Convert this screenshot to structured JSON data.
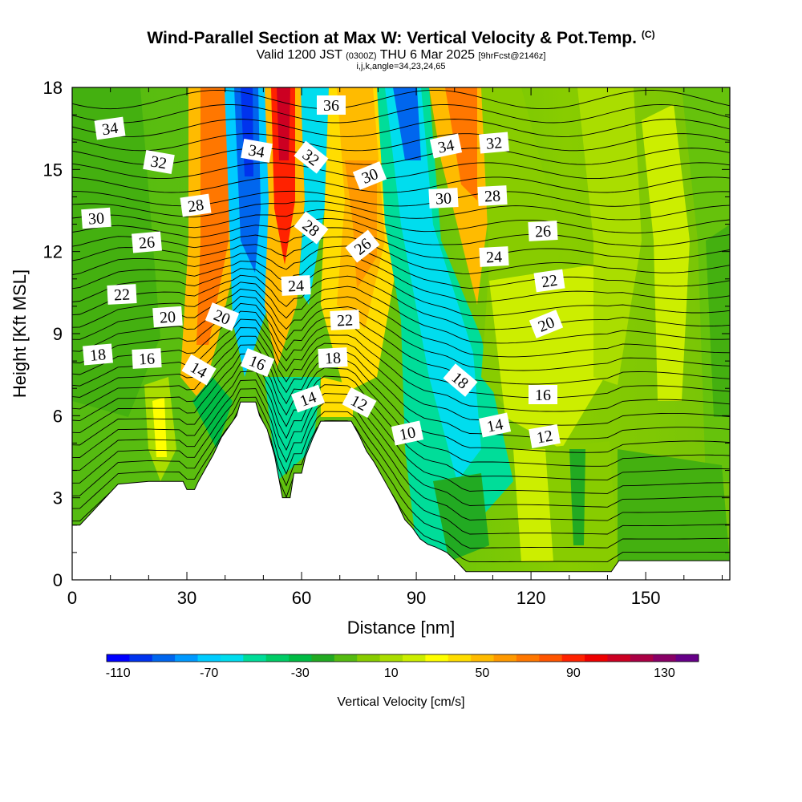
{
  "title": {
    "main": "Wind-Parallel Section at Max W: Vertical Velocity & Pot.Temp.",
    "copyright": "(C)",
    "valid_prefix": "Valid 1200 JST",
    "utc": "(0300Z)",
    "date": "THU 6 Mar 2025",
    "fcst": "[9hrFcst@2146z]",
    "params": "i,j,k,angle=34,23,24,65"
  },
  "chart_data": {
    "type": "heatmap",
    "xlabel": "Distance [nm]",
    "ylabel": "Height [Kft MSL]",
    "xlim": [
      0,
      172
    ],
    "ylim": [
      0,
      18
    ],
    "xticks": [
      "0",
      "30",
      "60",
      "90",
      "120",
      "150"
    ],
    "yticks": [
      "0",
      "3",
      "6",
      "9",
      "12",
      "15",
      "18"
    ],
    "colorbar": {
      "label": "Vertical Velocity [cm/s]",
      "tick_labels": [
        "-110",
        "-70",
        "-30",
        "10",
        "50",
        "90",
        "130"
      ],
      "colors": [
        "#0000ff",
        "#0033ee",
        "#0066ee",
        "#0099ff",
        "#00ccff",
        "#00ddee",
        "#00dd99",
        "#00cc66",
        "#00bb44",
        "#22aa22",
        "#55bb11",
        "#88cc00",
        "#aadd00",
        "#ccee00",
        "#ffff00",
        "#ffdd00",
        "#ffbb00",
        "#ff9900",
        "#ff7700",
        "#ff5500",
        "#ff2200",
        "#ee0000",
        "#cc0022",
        "#aa0044",
        "#880066",
        "#660088"
      ]
    },
    "terrain_kft": [
      [
        0,
        2
      ],
      [
        2,
        2
      ],
      [
        4,
        2.3
      ],
      [
        6,
        2.6
      ],
      [
        8,
        2.9
      ],
      [
        10,
        3.2
      ],
      [
        12,
        3.5
      ],
      [
        20,
        3.6
      ],
      [
        29,
        3.6
      ],
      [
        30,
        3.3
      ],
      [
        32,
        3.3
      ],
      [
        33,
        3.6
      ],
      [
        35,
        4.1
      ],
      [
        37,
        4.6
      ],
      [
        39,
        5.2
      ],
      [
        41,
        5.6
      ],
      [
        43,
        6
      ],
      [
        44,
        6.5
      ],
      [
        48,
        6.5
      ],
      [
        49,
        6
      ],
      [
        51,
        5.5
      ],
      [
        53,
        4.5
      ],
      [
        55,
        3
      ],
      [
        57,
        3
      ],
      [
        58,
        3.9
      ],
      [
        60,
        3.9
      ],
      [
        61,
        4.5
      ],
      [
        63,
        5.2
      ],
      [
        65,
        5.8
      ],
      [
        73,
        5.8
      ],
      [
        75,
        5.3
      ],
      [
        77,
        4.7
      ],
      [
        79,
        4.3
      ],
      [
        81,
        3.8
      ],
      [
        83,
        3.3
      ],
      [
        85,
        2.8
      ],
      [
        87,
        2.2
      ],
      [
        89,
        1.9
      ],
      [
        91,
        1.5
      ],
      [
        93,
        1.3
      ],
      [
        95,
        1.2
      ],
      [
        98,
        1
      ],
      [
        101,
        0.6
      ],
      [
        103,
        0.3
      ],
      [
        141,
        0.3
      ],
      [
        143,
        0.7
      ],
      [
        172,
        0.7
      ]
    ],
    "theta_contour_labels": [
      "34",
      "32",
      "30",
      "28",
      "26",
      "22",
      "20",
      "18",
      "16",
      "14",
      "20",
      "36",
      "34",
      "32",
      "16",
      "14",
      "24",
      "28",
      "26",
      "30",
      "22",
      "18",
      "12",
      "10",
      "34",
      "32",
      "30",
      "28",
      "24",
      "18",
      "14",
      "26",
      "22",
      "20",
      "16",
      "12"
    ]
  }
}
